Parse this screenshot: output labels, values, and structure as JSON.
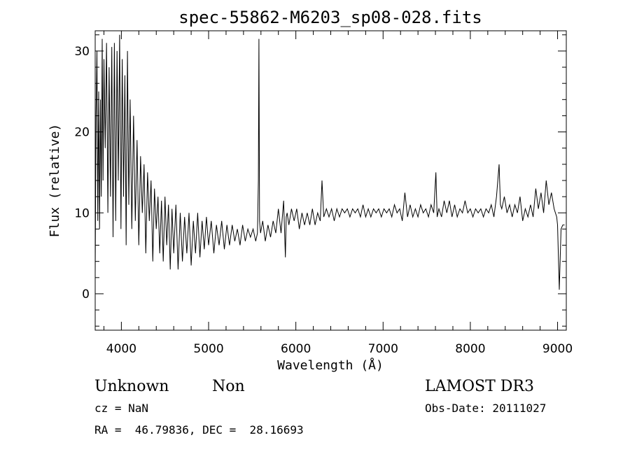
{
  "chart_data": {
    "type": "line",
    "title": "spec-55862-M6203_sp08-028.fits",
    "xlabel": "Wavelength (Å)",
    "ylabel": "Flux (relative)",
    "xlim": [
      3700,
      9100
    ],
    "ylim": [
      -4.5,
      32.5
    ],
    "x_ticks": [
      4000,
      5000,
      6000,
      7000,
      8000,
      9000
    ],
    "y_ticks": [
      0,
      10,
      20,
      30
    ],
    "x_tick_labels": [
      "4000",
      "5000",
      "6000",
      "7000",
      "8000",
      "9000"
    ],
    "y_tick_labels": [
      "0",
      "10",
      "20",
      "30"
    ],
    "grid": false,
    "legend": "none",
    "series": [
      {
        "x": [
          3700,
          3710,
          3720,
          3730,
          3740,
          3750,
          3760,
          3770,
          3780,
          3790,
          3800,
          3815,
          3830,
          3845,
          3860,
          3875,
          3890,
          3905,
          3920,
          3935,
          3950,
          3965,
          3980,
          3995,
          4010,
          4025,
          4040,
          4055,
          4070,
          4085,
          4100,
          4120,
          4140,
          4160,
          4180,
          4200,
          4220,
          4240,
          4260,
          4280,
          4300,
          4320,
          4340,
          4360,
          4380,
          4400,
          4420,
          4440,
          4460,
          4480,
          4500,
          4520,
          4540,
          4560,
          4580,
          4600,
          4625,
          4650,
          4675,
          4700,
          4725,
          4750,
          4775,
          4800,
          4825,
          4850,
          4875,
          4900,
          4925,
          4950,
          4975,
          5000,
          5030,
          5060,
          5090,
          5120,
          5150,
          5180,
          5210,
          5240,
          5270,
          5300,
          5330,
          5360,
          5390,
          5420,
          5450,
          5480,
          5510,
          5540,
          5560,
          5570,
          5577,
          5584,
          5595,
          5620,
          5650,
          5680,
          5710,
          5740,
          5770,
          5800,
          5830,
          5860,
          5880,
          5890,
          5900,
          5920,
          5950,
          5980,
          6010,
          6040,
          6070,
          6100,
          6130,
          6160,
          6190,
          6220,
          6250,
          6280,
          6300,
          6320,
          6350,
          6380,
          6410,
          6440,
          6470,
          6500,
          6530,
          6560,
          6590,
          6620,
          6650,
          6680,
          6710,
          6740,
          6770,
          6800,
          6830,
          6860,
          6890,
          6920,
          6950,
          6980,
          7010,
          7040,
          7070,
          7100,
          7130,
          7160,
          7190,
          7220,
          7250,
          7280,
          7310,
          7340,
          7370,
          7400,
          7430,
          7460,
          7490,
          7520,
          7550,
          7580,
          7605,
          7620,
          7640,
          7670,
          7700,
          7730,
          7760,
          7790,
          7820,
          7850,
          7880,
          7910,
          7940,
          7970,
          8000,
          8030,
          8060,
          8090,
          8120,
          8150,
          8180,
          8210,
          8240,
          8270,
          8300,
          8330,
          8345,
          8360,
          8390,
          8420,
          8450,
          8480,
          8510,
          8540,
          8570,
          8600,
          8630,
          8660,
          8690,
          8720,
          8750,
          8780,
          8810,
          8840,
          8870,
          8900,
          8930,
          8960,
          8990,
          9000,
          9020,
          9040,
          9060,
          9080
        ],
        "y": [
          2.5,
          22.0,
          30.0,
          9.0,
          25.0,
          8.0,
          24.0,
          12.0,
          31.5,
          14.0,
          29.0,
          18.0,
          31.0,
          10.0,
          28.0,
          12.0,
          30.5,
          7.0,
          31.0,
          9.0,
          30.0,
          14.0,
          32.0,
          8.0,
          29.0,
          12.0,
          27.0,
          6.0,
          30.0,
          11.0,
          24.0,
          8.0,
          22.0,
          9.0,
          19.0,
          6.0,
          17.0,
          10.0,
          16.0,
          5.0,
          15.0,
          9.0,
          14.0,
          4.0,
          13.0,
          8.0,
          12.0,
          5.0,
          11.5,
          4.0,
          12.0,
          6.0,
          11.0,
          3.0,
          10.5,
          5.0,
          11.0,
          3.0,
          10.0,
          4.0,
          9.5,
          5.0,
          10.0,
          3.5,
          9.0,
          5.0,
          10.0,
          4.5,
          9.0,
          5.5,
          9.5,
          6.0,
          9.0,
          5.0,
          8.5,
          6.0,
          9.0,
          5.5,
          8.5,
          6.0,
          8.5,
          6.5,
          8.0,
          6.0,
          8.5,
          6.5,
          8.0,
          7.0,
          8.0,
          6.5,
          7.5,
          14.0,
          31.5,
          9.0,
          7.5,
          9.0,
          6.5,
          8.5,
          7.0,
          9.0,
          7.5,
          10.5,
          7.5,
          11.5,
          4.5,
          9.5,
          10.0,
          8.5,
          10.5,
          9.0,
          10.5,
          8.0,
          10.0,
          8.5,
          10.0,
          8.5,
          10.5,
          8.5,
          10.0,
          9.0,
          14.0,
          9.5,
          10.5,
          9.5,
          10.5,
          9.0,
          10.5,
          9.5,
          10.5,
          10.0,
          10.5,
          9.5,
          10.5,
          10.0,
          10.5,
          9.5,
          11.0,
          9.5,
          10.5,
          9.5,
          10.5,
          10.0,
          10.5,
          9.5,
          10.5,
          10.0,
          10.5,
          9.5,
          11.0,
          10.0,
          10.5,
          9.0,
          12.5,
          9.5,
          11.0,
          9.5,
          10.5,
          9.5,
          11.0,
          10.0,
          10.5,
          9.5,
          11.0,
          10.0,
          15.0,
          9.5,
          10.5,
          9.5,
          11.5,
          10.0,
          11.5,
          9.5,
          11.0,
          9.5,
          10.5,
          10.0,
          11.5,
          10.0,
          10.5,
          9.5,
          10.5,
          10.0,
          10.5,
          9.5,
          10.5,
          10.0,
          11.0,
          9.5,
          12.0,
          16.0,
          11.0,
          10.5,
          12.0,
          10.0,
          11.0,
          9.5,
          11.0,
          10.0,
          12.0,
          9.0,
          10.5,
          9.5,
          11.0,
          9.5,
          13.0,
          10.5,
          12.5,
          10.0,
          14.0,
          11.0,
          12.5,
          10.5,
          9.5,
          8.5,
          0.5,
          8.0,
          8.5,
          8.5
        ]
      }
    ],
    "annotations": {
      "object_class": "Unknown",
      "object_subclass": "Non",
      "survey": "LAMOST DR3",
      "cz_line": "cz = NaN",
      "obs_date": "Obs-Date: 20111027",
      "coords": "RA =  46.79836, DEC =  28.16693"
    }
  }
}
